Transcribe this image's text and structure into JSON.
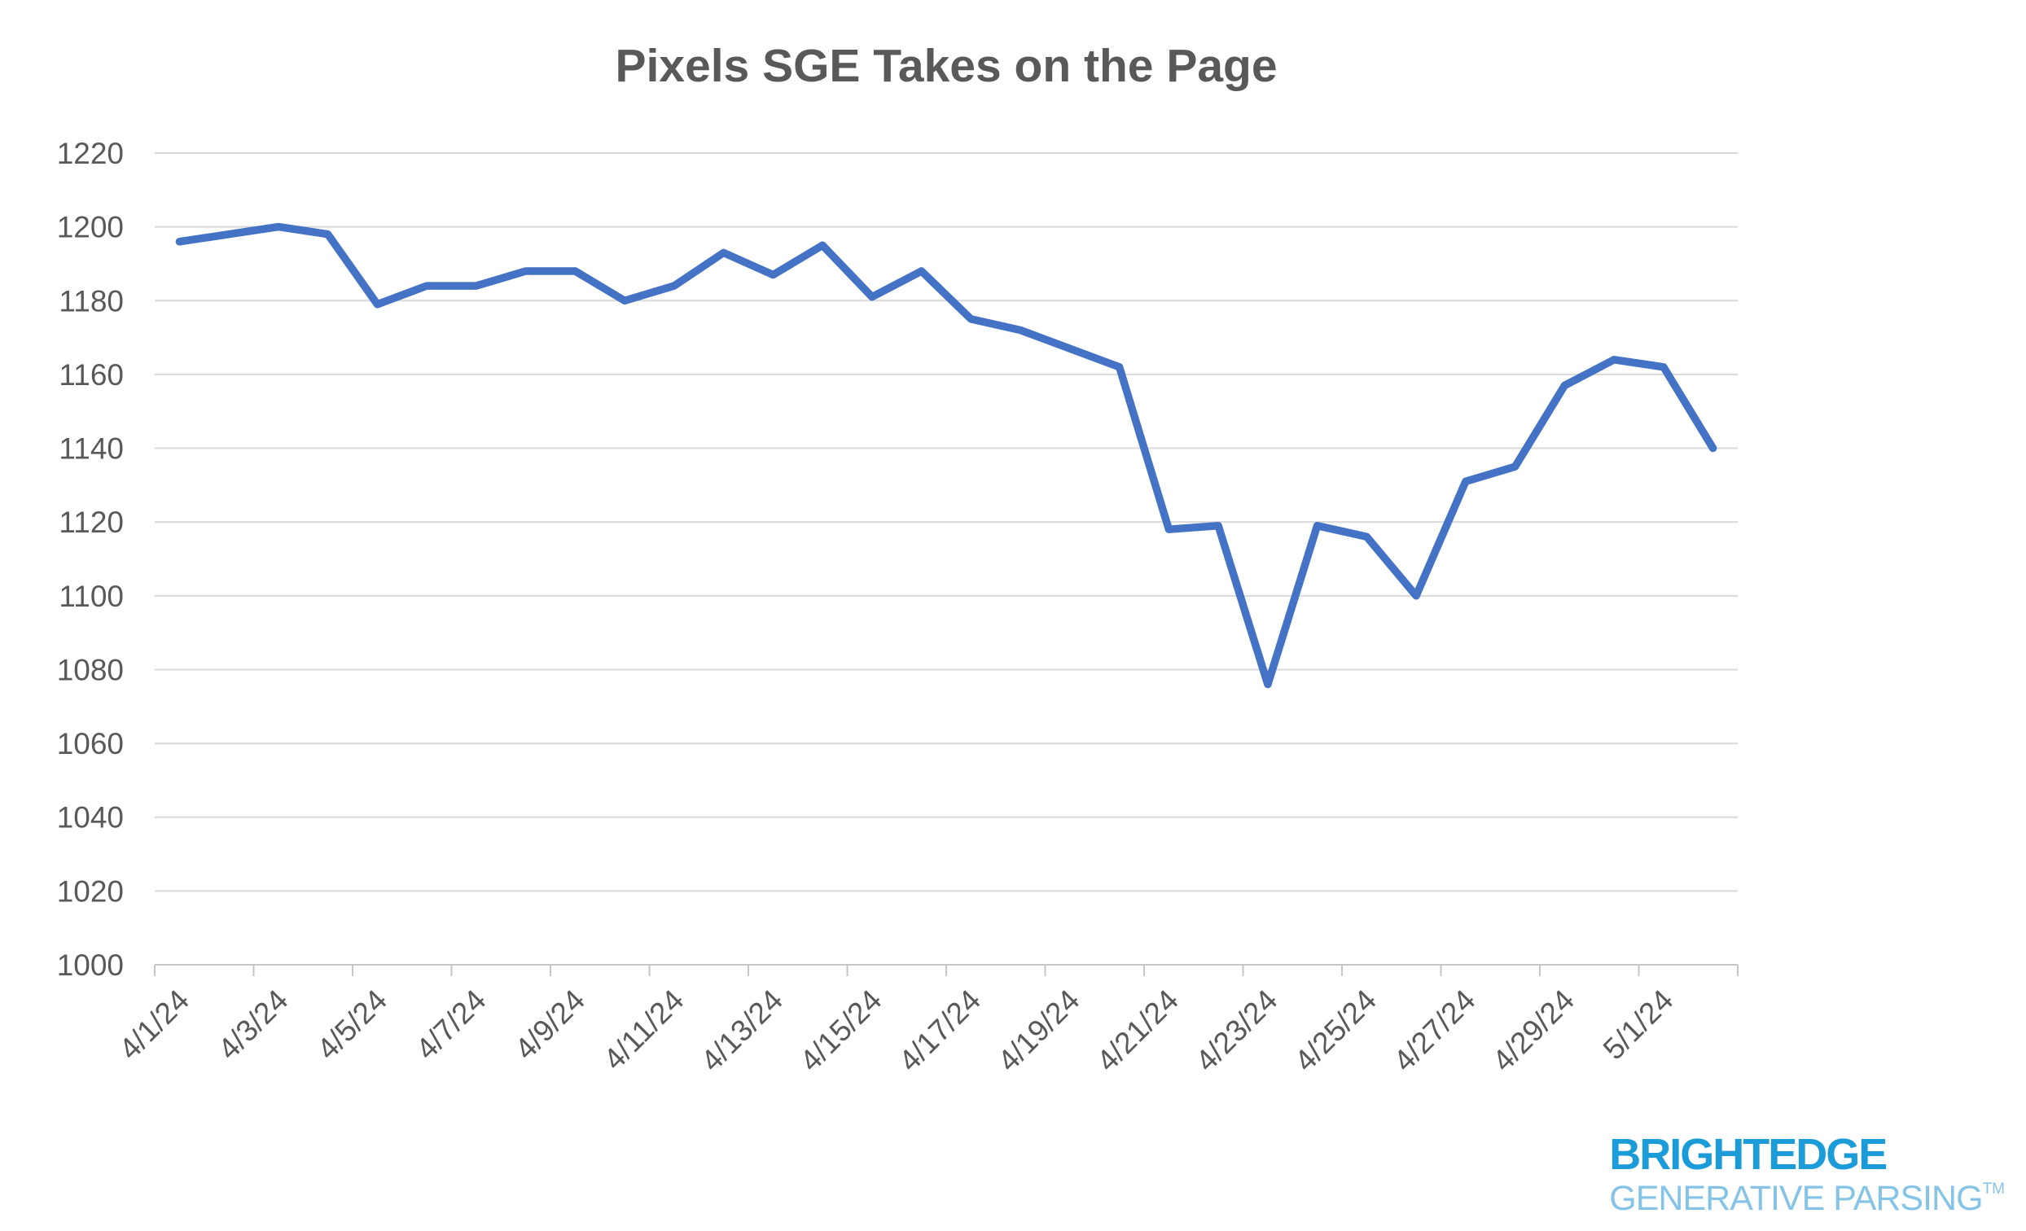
{
  "chart_data": {
    "type": "line",
    "title": "Pixels SGE Takes on the Page",
    "xlabel": "",
    "ylabel": "",
    "x": [
      "4/1/24",
      "4/2/24",
      "4/3/24",
      "4/4/24",
      "4/5/24",
      "4/6/24",
      "4/7/24",
      "4/8/24",
      "4/9/24",
      "4/10/24",
      "4/11/24",
      "4/12/24",
      "4/13/24",
      "4/14/24",
      "4/15/24",
      "4/16/24",
      "4/17/24",
      "4/18/24",
      "4/19/24",
      "4/20/24",
      "4/21/24",
      "4/22/24",
      "4/23/24",
      "4/24/24",
      "4/25/24",
      "4/26/24",
      "4/27/24",
      "4/28/24",
      "4/29/24",
      "4/30/24",
      "5/1/24",
      "5/2/24"
    ],
    "values": [
      1196,
      1198,
      1200,
      1198,
      1179,
      1184,
      1184,
      1188,
      1188,
      1180,
      1184,
      1193,
      1187,
      1195,
      1181,
      1188,
      1175,
      1172,
      1167,
      1162,
      1118,
      1119,
      1076,
      1119,
      1116,
      1100,
      1131,
      1135,
      1157,
      1164,
      1162,
      1140
    ],
    "x_label_every": 2,
    "ylim": [
      1000,
      1220
    ],
    "y_tick_step": 20,
    "grid": "horizontal-only",
    "legend_position": "none",
    "series_name": "Pixels SGE Takes on the Page",
    "series_color": "#4472c4",
    "gridline_color": "#d9d9d9",
    "axis_line_color": "#c6c6c6",
    "tick_label_color": "#595959",
    "title_color": "#595959"
  },
  "logo": {
    "brand": "BRIGHTEDGE",
    "tagline": "GENERATIVE PARSING",
    "trademark": "TM"
  }
}
